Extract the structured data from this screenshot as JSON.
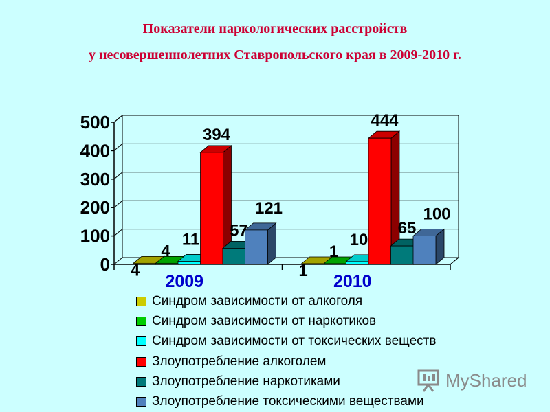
{
  "title_line1": "Показатели наркологических расстройств",
  "title_line2": "у несовершеннолетних Ставропольского края в 2009-2010 г.",
  "logo_text": "MyShared",
  "colors": {
    "background": "#ccffff",
    "title": "#cc0033",
    "category_label": "#0000cc"
  },
  "chart_data": {
    "type": "bar",
    "categories": [
      "2009",
      "2010"
    ],
    "ylim": [
      0,
      500
    ],
    "yticks": [
      0,
      100,
      200,
      300,
      400,
      500
    ],
    "grid": true,
    "legend_position": "bottom",
    "series": [
      {
        "name": "Синдром зависимости от алкоголя",
        "values": [
          4,
          1
        ],
        "color": "#cccc00"
      },
      {
        "name": "Синдром зависимости от наркотиков",
        "values": [
          4,
          1
        ],
        "color": "#00cc00"
      },
      {
        "name": "Синдром зависимости от токсических веществ",
        "values": [
          11,
          10
        ],
        "color": "#00ffff"
      },
      {
        "name": "Злоупотребление алкоголем",
        "values": [
          394,
          444
        ],
        "color": "#ff0000"
      },
      {
        "name": "Злоупотребление наркотиками",
        "values": [
          57,
          65
        ],
        "color": "#007a7a"
      },
      {
        "name": "Злоупотребление токсическими веществами",
        "values": [
          121,
          100
        ],
        "color": "#4f81bd"
      }
    ]
  }
}
